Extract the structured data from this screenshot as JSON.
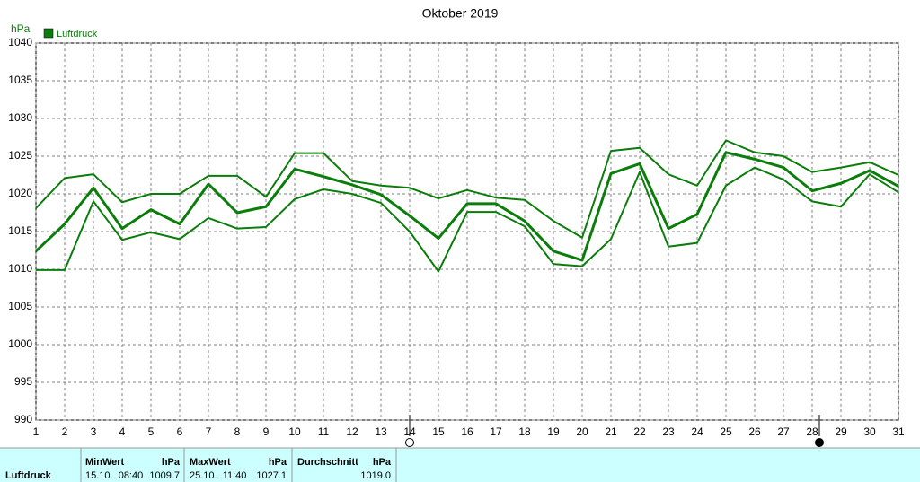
{
  "chart_data": {
    "type": "line",
    "title": "Oktober 2019",
    "ylabel": "hPa",
    "x": [
      1,
      2,
      3,
      4,
      5,
      6,
      7,
      8,
      9,
      10,
      11,
      12,
      13,
      14,
      15,
      16,
      17,
      18,
      19,
      20,
      21,
      22,
      23,
      24,
      25,
      26,
      27,
      28,
      29,
      30,
      31
    ],
    "xlim": [
      1,
      31
    ],
    "xticks": [
      1,
      2,
      3,
      4,
      5,
      6,
      7,
      8,
      9,
      10,
      11,
      12,
      13,
      14,
      15,
      16,
      17,
      18,
      19,
      20,
      21,
      22,
      23,
      24,
      25,
      26,
      27,
      28,
      29,
      30,
      31
    ],
    "ylim": [
      990,
      1040
    ],
    "yticks": [
      990,
      995,
      1000,
      1005,
      1010,
      1015,
      1020,
      1025,
      1030,
      1035,
      1040
    ],
    "grid": true,
    "legend": "top-left",
    "series": [
      {
        "name": "Luftdruck",
        "color": "#0a7d0a",
        "values": [
          1012.4,
          1016,
          1020.8,
          1015.4,
          1017.9,
          1016,
          1021.3,
          1017.5,
          1018.3,
          1023.3,
          1022.3,
          1021.2,
          1019.9,
          1017.1,
          1014.1,
          1018.7,
          1018.7,
          1016.4,
          1012.4,
          1011.2,
          1022.7,
          1024,
          1015.4,
          1017.3,
          1025.5,
          1024.6,
          1023.5,
          1020.4,
          1021.4,
          1023.1,
          1021
        ]
      },
      {
        "color": "#0a7d0a",
        "values": [
          1018.1,
          1022.1,
          1022.6,
          1018.9,
          1020,
          1020,
          1022.4,
          1022.4,
          1019.6,
          1025.4,
          1025.4,
          1021.7,
          1021.1,
          1020.8,
          1019.4,
          1020.5,
          1019.5,
          1019.2,
          1016.4,
          1014.2,
          1025.7,
          1026.1,
          1022.6,
          1021.1,
          1027.1,
          1025.5,
          1025,
          1022.9,
          1023.5,
          1024.2,
          1022.5
        ]
      },
      {
        "color": "#0a7d0a",
        "values": [
          1009.9,
          1009.9,
          1019,
          1013.9,
          1014.9,
          1014,
          1016.8,
          1015.4,
          1015.6,
          1019.3,
          1020.6,
          1020,
          1018.8,
          1015,
          1009.7,
          1017.6,
          1017.6,
          1015.7,
          1010.7,
          1010.4,
          1014,
          1022.9,
          1013,
          1013.5,
          1021.1,
          1023.5,
          1021.9,
          1019,
          1018.3,
          1022.6,
          1020.2
        ]
      }
    ]
  },
  "table": {
    "row_label": "Luftdruck",
    "columns": [
      {
        "header": "MinWert",
        "unit": "hPa",
        "time": "15.10.  08:40",
        "value": "1009.7"
      },
      {
        "header": "MaxWert",
        "unit": "hPa",
        "time": "25.10.  11:40",
        "value": "1027.1"
      },
      {
        "header": "Durchschnitt",
        "unit": "hPa",
        "value": "1019.0"
      }
    ]
  }
}
